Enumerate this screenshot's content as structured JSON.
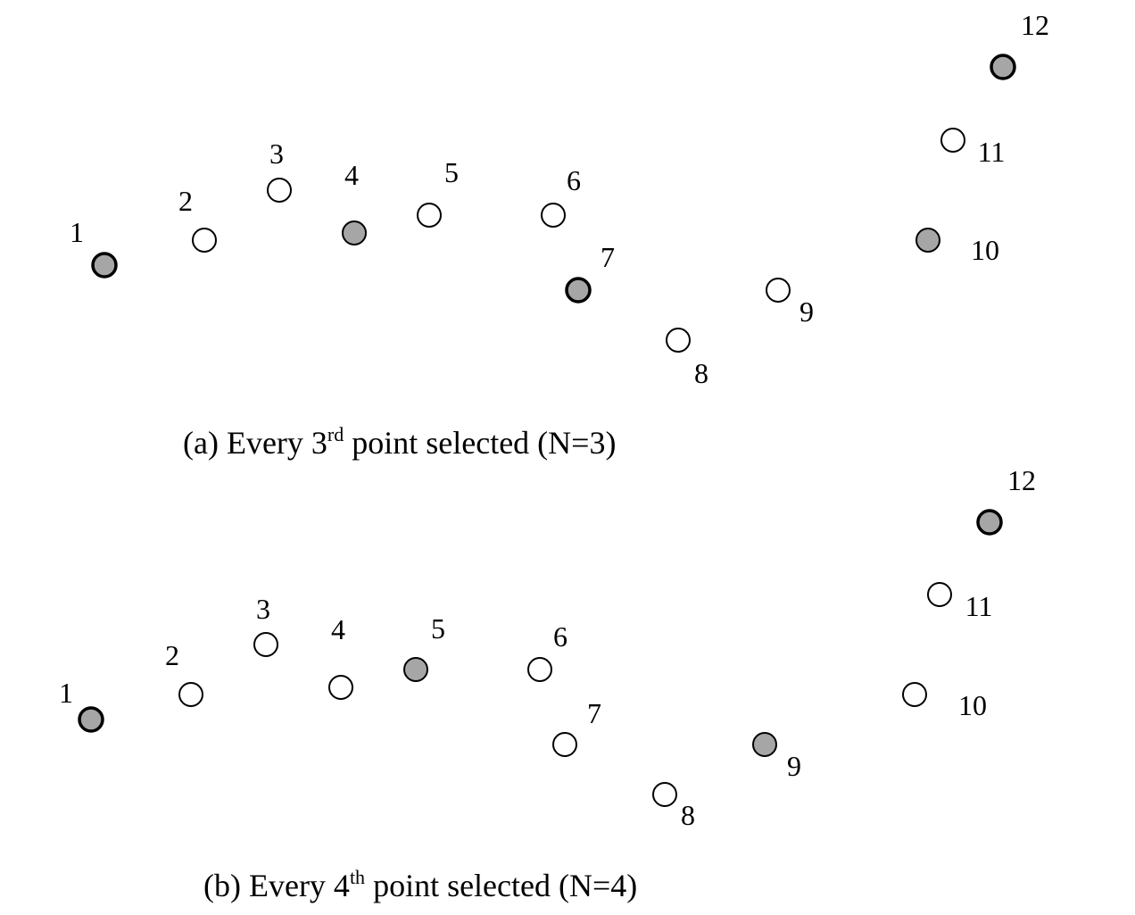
{
  "colors": {
    "selected_fill": "#a6a6a6",
    "unselected_fill": "#ffffff",
    "stroke": "#000000"
  },
  "panels": [
    {
      "id": "a",
      "caption": {
        "prefix": "(a) Every 3",
        "superscript": "rd",
        "suffix": " point selected (N=3)"
      },
      "points": [
        {
          "label": "1",
          "selected": true
        },
        {
          "label": "2",
          "selected": false
        },
        {
          "label": "3",
          "selected": false
        },
        {
          "label": "4",
          "selected": true
        },
        {
          "label": "5",
          "selected": false
        },
        {
          "label": "6",
          "selected": false
        },
        {
          "label": "7",
          "selected": true
        },
        {
          "label": "8",
          "selected": false
        },
        {
          "label": "9",
          "selected": false
        },
        {
          "label": "10",
          "selected": true
        },
        {
          "label": "11",
          "selected": false
        },
        {
          "label": "12",
          "selected": true
        }
      ]
    },
    {
      "id": "b",
      "caption": {
        "prefix": "(b) Every 4",
        "superscript": "th",
        "suffix": " point selected (N=4)"
      },
      "points": [
        {
          "label": "1",
          "selected": true
        },
        {
          "label": "2",
          "selected": false
        },
        {
          "label": "3",
          "selected": false
        },
        {
          "label": "4",
          "selected": false
        },
        {
          "label": "5",
          "selected": true
        },
        {
          "label": "6",
          "selected": false
        },
        {
          "label": "7",
          "selected": false
        },
        {
          "label": "8",
          "selected": false
        },
        {
          "label": "9",
          "selected": true
        },
        {
          "label": "10",
          "selected": false
        },
        {
          "label": "11",
          "selected": false
        },
        {
          "label": "12",
          "selected": true
        }
      ]
    }
  ]
}
